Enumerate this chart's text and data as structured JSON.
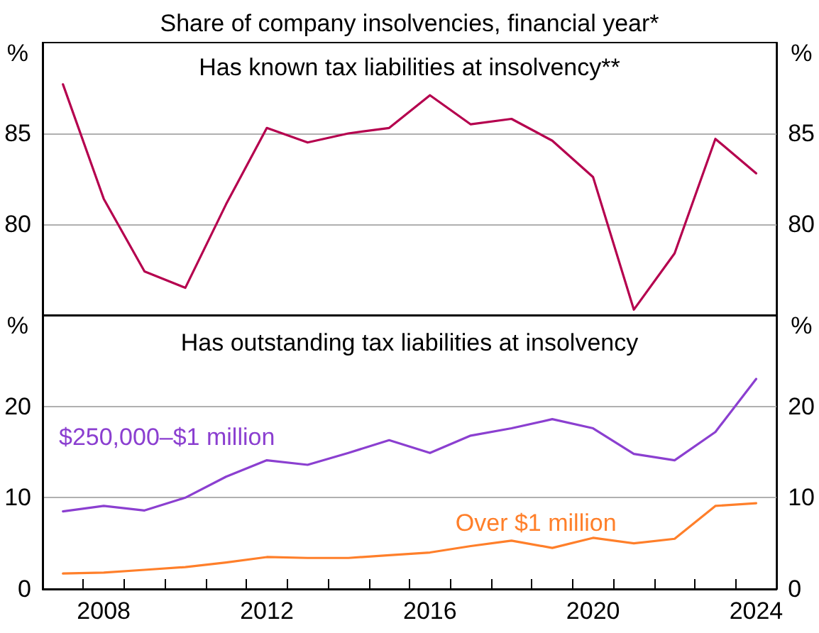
{
  "chart_data": [
    {
      "type": "line",
      "title": "Share of company insolvencies, financial year*",
      "subtitle": "Has known tax liabilities at insolvency**",
      "ylabel": "%",
      "y2label": "%",
      "x": [
        2007,
        2008,
        2009,
        2010,
        2011,
        2012,
        2013,
        2014,
        2015,
        2016,
        2017,
        2018,
        2019,
        2020,
        2021,
        2022,
        2023,
        2024
      ],
      "series": [
        {
          "color": "#b5004e",
          "values": [
            87.7,
            81.4,
            77.4,
            76.5,
            81.1,
            85.3,
            84.5,
            85.0,
            85.3,
            87.1,
            85.5,
            85.8,
            84.6,
            82.6,
            75.3,
            78.4,
            84.7,
            82.8
          ]
        }
      ],
      "xlim": [
        2006.5,
        2024.5
      ],
      "ylim": [
        75,
        90
      ],
      "yticks": [
        80,
        85
      ],
      "y2lim": [
        75,
        90
      ],
      "y2ticks": [
        80,
        85
      ],
      "grid": "y",
      "legend": false,
      "marker": "none",
      "line_style": "solid",
      "tick_labels": "y"
    },
    {
      "type": "line",
      "title": "Has outstanding tax liabilities at insolvency",
      "ylabel": "%",
      "y2label": "%",
      "x": [
        2007,
        2008,
        2009,
        2010,
        2011,
        2012,
        2013,
        2014,
        2015,
        2016,
        2017,
        2018,
        2019,
        2020,
        2021,
        2022,
        2023,
        2024
      ],
      "series": [
        {
          "name": "$250,000–$1 million",
          "color": "#8b3fd0",
          "values": [
            8.5,
            9.1,
            8.6,
            10.0,
            12.3,
            14.1,
            13.6,
            14.9,
            16.3,
            14.9,
            16.8,
            17.6,
            18.6,
            17.6,
            14.8,
            14.1,
            17.2,
            23.0
          ]
        },
        {
          "name": "Over $1 million",
          "color": "#ff7f2a",
          "values": [
            1.7,
            1.8,
            2.1,
            2.4,
            2.9,
            3.5,
            3.4,
            3.4,
            3.7,
            4.0,
            4.7,
            5.3,
            4.5,
            5.6,
            5.0,
            5.5,
            9.1,
            9.4
          ]
        }
      ],
      "xlim": [
        2006.5,
        2024.5
      ],
      "xticks": [
        {
          "value": 2007.5,
          "label": null
        },
        2008,
        {
          "value": 2008.5,
          "label": null
        },
        {
          "value": 2009.5,
          "label": null
        },
        {
          "value": 2010.5,
          "label": null
        },
        {
          "value": 2011.5,
          "label": null
        },
        2012,
        {
          "value": 2012.5,
          "label": null
        },
        {
          "value": 2013.5,
          "label": null
        },
        {
          "value": 2014.5,
          "label": null
        },
        {
          "value": 2015.5,
          "label": null
        },
        2016,
        {
          "value": 2016.5,
          "label": null
        },
        {
          "value": 2017.5,
          "label": null
        },
        {
          "value": 2018.5,
          "label": null
        },
        {
          "value": 2019.5,
          "label": null
        },
        2020,
        {
          "value": 2020.5,
          "label": null
        },
        {
          "value": 2021.5,
          "label": null
        },
        {
          "value": 2022.5,
          "label": null
        },
        {
          "value": 2023.5,
          "label": null
        },
        2024
      ],
      "ylim": [
        0,
        30
      ],
      "yticks": [
        0,
        10,
        20
      ],
      "y2lim": [
        0,
        30
      ],
      "y2ticks": [
        0,
        10,
        20
      ],
      "grid": "y",
      "legend": false,
      "marker": "none",
      "line_style": "solid"
    }
  ]
}
